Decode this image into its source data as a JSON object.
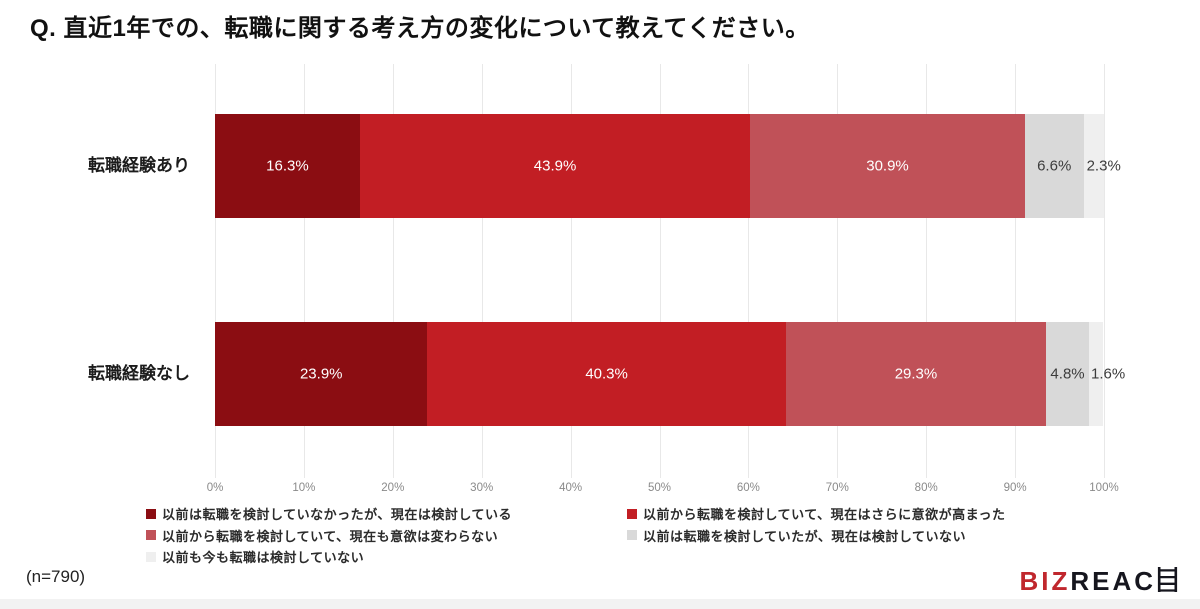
{
  "title": "Q. 直近1年での、転職に関する考え方の変化について教えてください。",
  "sample_note": "(n=790)",
  "logo": {
    "biz": "BIZ",
    "reach": "REAC",
    "ladder_letter": "H",
    "brand_red": "#C0272D",
    "brand_dark": "#16161E"
  },
  "chart_data": {
    "type": "bar",
    "orientation": "horizontal-stacked",
    "categories": [
      "転職経験あり",
      "転職経験なし"
    ],
    "series": [
      {
        "name": "以前は転職を検討していなかったが、現在は検討している",
        "color": "#8B0D12",
        "label_color": "#FFFFFF",
        "values": [
          16.3,
          23.9
        ]
      },
      {
        "name": "以前から転職を検討していて、現在はさらに意欲が高まった",
        "color": "#C21E24",
        "label_color": "#FFFFFF",
        "values": [
          43.9,
          40.3
        ]
      },
      {
        "name": "以前から転職を検討していて、現在も意欲は変わらない",
        "color": "#C05158",
        "label_color": "#FFFFFF",
        "values": [
          30.9,
          29.3
        ]
      },
      {
        "name": "以前は転職を検討していたが、現在は検討していない",
        "color": "#D9D9D9",
        "label_color": "#3C3C3C",
        "values": [
          6.6,
          4.8
        ]
      },
      {
        "name": "以前も今も転職は検討していない",
        "color": "#EFEFEF",
        "label_color": "#3C3C3C",
        "values": [
          2.3,
          1.6
        ]
      }
    ],
    "xticks": [
      "0%",
      "10%",
      "20%",
      "30%",
      "40%",
      "50%",
      "60%",
      "70%",
      "80%",
      "90%",
      "100%"
    ],
    "xlim": [
      0,
      100
    ],
    "grid": true,
    "legend_position": "bottom",
    "legend_columns": [
      [
        0,
        2,
        4
      ],
      [
        1,
        3
      ]
    ],
    "value_suffix": "%"
  }
}
